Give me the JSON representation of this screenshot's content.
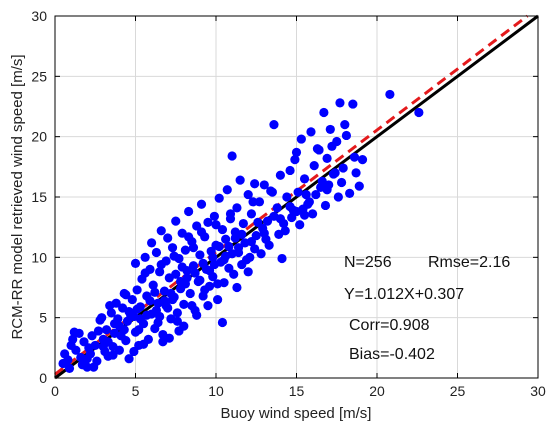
{
  "chart_data": {
    "type": "scatter",
    "xlabel": "Buoy wind speed [m/s]",
    "ylabel": "RCM-RR model retrieved wind speed [m/s]",
    "xlim": [
      0,
      30
    ],
    "ylim": [
      0,
      30
    ],
    "xticks": [
      "0",
      "5",
      "10",
      "15",
      "20",
      "25",
      "30"
    ],
    "yticks": [
      "0",
      "5",
      "10",
      "15",
      "20",
      "25",
      "30"
    ],
    "grid": true,
    "point_color": "#0000ff",
    "lines": [
      {
        "style": "solid",
        "color": "#000000",
        "slope": 1,
        "intercept": 0
      },
      {
        "style": "dashed",
        "color": "#e41a1c",
        "slope": 1.012,
        "intercept": 0.307
      }
    ],
    "annotations": [
      "N=256",
      "Rmse=2.16",
      "Y=1.012X+0.307",
      "Corr=0.908",
      "Bias=-0.402"
    ],
    "points": [
      [
        0.5,
        1.2
      ],
      [
        0.6,
        2.0
      ],
      [
        0.8,
        1.5
      ],
      [
        1.0,
        2.7
      ],
      [
        1.1,
        3.2
      ],
      [
        1.3,
        2.3
      ],
      [
        1.5,
        3.7
      ],
      [
        1.6,
        1.7
      ],
      [
        1.8,
        3.0
      ],
      [
        2.0,
        0.9
      ],
      [
        2.2,
        2.0
      ],
      [
        2.3,
        3.5
      ],
      [
        2.5,
        2.7
      ],
      [
        2.6,
        1.4
      ],
      [
        2.8,
        4.8
      ],
      [
        3.0,
        3.2
      ],
      [
        3.1,
        2.2
      ],
      [
        3.2,
        4.0
      ],
      [
        3.3,
        1.8
      ],
      [
        3.5,
        5.4
      ],
      [
        3.6,
        2.6
      ],
      [
        3.7,
        3.7
      ],
      [
        3.8,
        6.2
      ],
      [
        4.0,
        4.3
      ],
      [
        4.0,
        2.3
      ],
      [
        4.2,
        5.8
      ],
      [
        4.3,
        7.0
      ],
      [
        4.4,
        3.1
      ],
      [
        4.5,
        4.7
      ],
      [
        4.6,
        1.6
      ],
      [
        4.8,
        6.5
      ],
      [
        4.9,
        5.1
      ],
      [
        5.0,
        9.5
      ],
      [
        5.0,
        3.8
      ],
      [
        5.1,
        7.3
      ],
      [
        5.2,
        2.7
      ],
      [
        5.3,
        5.9
      ],
      [
        5.4,
        8.2
      ],
      [
        5.5,
        4.5
      ],
      [
        5.6,
        10.0
      ],
      [
        5.7,
        6.8
      ],
      [
        5.8,
        3.2
      ],
      [
        5.9,
        9.0
      ],
      [
        6.0,
        11.2
      ],
      [
        6.0,
        5.3
      ],
      [
        6.1,
        7.7
      ],
      [
        6.2,
        4.1
      ],
      [
        6.3,
        10.4
      ],
      [
        6.4,
        6.2
      ],
      [
        6.5,
        8.8
      ],
      [
        6.6,
        12.2
      ],
      [
        6.7,
        3.6
      ],
      [
        6.8,
        7.2
      ],
      [
        6.9,
        9.7
      ],
      [
        7.0,
        5.8
      ],
      [
        7.0,
        11.6
      ],
      [
        7.1,
        8.3
      ],
      [
        7.2,
        4.9
      ],
      [
        7.3,
        10.8
      ],
      [
        7.4,
        6.7
      ],
      [
        7.5,
        13.0
      ],
      [
        7.5,
        8.6
      ],
      [
        7.6,
        5.4
      ],
      [
        7.7,
        9.9
      ],
      [
        7.8,
        7.4
      ],
      [
        7.9,
        12.0
      ],
      [
        8.0,
        6.1
      ],
      [
        8.1,
        10.6
      ],
      [
        8.2,
        8.9
      ],
      [
        8.3,
        13.8
      ],
      [
        8.4,
        7.0
      ],
      [
        8.5,
        11.3
      ],
      [
        8.6,
        9.3
      ],
      [
        8.7,
        5.6
      ],
      [
        8.8,
        12.6
      ],
      [
        8.9,
        8.0
      ],
      [
        9.0,
        10.2
      ],
      [
        9.1,
        14.4
      ],
      [
        9.2,
        6.8
      ],
      [
        9.3,
        11.7
      ],
      [
        9.4,
        9.0
      ],
      [
        9.5,
        12.9
      ],
      [
        9.6,
        7.6
      ],
      [
        9.7,
        10.5
      ],
      [
        9.8,
        8.4
      ],
      [
        9.9,
        13.4
      ],
      [
        10.0,
        11.0
      ],
      [
        10.1,
        6.5
      ],
      [
        10.2,
        14.9
      ],
      [
        10.3,
        9.6
      ],
      [
        10.4,
        12.3
      ],
      [
        10.5,
        7.9
      ],
      [
        10.6,
        11.5
      ],
      [
        10.7,
        15.6
      ],
      [
        10.8,
        9.1
      ],
      [
        10.9,
        13.2
      ],
      [
        11.0,
        18.4
      ],
      [
        11.0,
        10.3
      ],
      [
        11.1,
        8.6
      ],
      [
        11.2,
        12.1
      ],
      [
        11.3,
        14.1
      ],
      [
        11.4,
        10.8
      ],
      [
        11.5,
        16.4
      ],
      [
        11.6,
        9.4
      ],
      [
        11.7,
        12.8
      ],
      [
        11.8,
        11.2
      ],
      [
        12.0,
        15.2
      ],
      [
        12.1,
        10.0
      ],
      [
        12.2,
        13.6
      ],
      [
        12.4,
        16.1
      ],
      [
        12.5,
        11.8
      ],
      [
        12.7,
        14.6
      ],
      [
        12.9,
        12.4
      ],
      [
        13.0,
        16.0
      ],
      [
        13.2,
        13.0
      ],
      [
        13.4,
        15.5
      ],
      [
        13.6,
        21.0
      ],
      [
        13.8,
        14.1
      ],
      [
        14.0,
        16.8
      ],
      [
        14.2,
        12.8
      ],
      [
        14.4,
        15.0
      ],
      [
        14.6,
        17.2
      ],
      [
        14.8,
        13.9
      ],
      [
        15.0,
        18.7
      ],
      [
        15.1,
        15.4
      ],
      [
        15.3,
        19.8
      ],
      [
        15.5,
        16.5
      ],
      [
        15.7,
        14.4
      ],
      [
        15.9,
        20.4
      ],
      [
        16.1,
        17.6
      ],
      [
        16.3,
        19.0
      ],
      [
        16.5,
        15.8
      ],
      [
        16.7,
        22.0
      ],
      [
        16.9,
        18.2
      ],
      [
        17.1,
        20.6
      ],
      [
        17.3,
        16.9
      ],
      [
        17.5,
        19.6
      ],
      [
        17.7,
        22.8
      ],
      [
        17.9,
        17.4
      ],
      [
        18.1,
        20.1
      ],
      [
        18.3,
        15.3
      ],
      [
        18.5,
        22.7
      ],
      [
        18.7,
        17.0
      ],
      [
        18.9,
        15.9
      ],
      [
        19.1,
        18.1
      ],
      [
        20.8,
        23.5
      ],
      [
        22.6,
        22.0
      ],
      [
        3.4,
        6.0
      ],
      [
        4.7,
        5.2
      ],
      [
        5.9,
        6.4
      ],
      [
        6.9,
        6.0
      ],
      [
        7.9,
        9.2
      ],
      [
        8.6,
        10.8
      ],
      [
        9.8,
        10.0
      ],
      [
        10.6,
        10.1
      ],
      [
        1.2,
        3.8
      ],
      [
        2.1,
        2.5
      ],
      [
        2.9,
        5.0
      ],
      [
        3.9,
        4.9
      ],
      [
        4.4,
        6.9
      ],
      [
        5.2,
        4.0
      ],
      [
        6.4,
        4.6
      ],
      [
        7.1,
        3.3
      ],
      [
        8.0,
        4.3
      ],
      [
        8.8,
        5.2
      ],
      [
        9.5,
        6.0
      ],
      [
        10.4,
        4.6
      ],
      [
        11.3,
        7.5
      ],
      [
        12.0,
        8.8
      ],
      [
        12.8,
        10.3
      ],
      [
        13.3,
        11.0
      ],
      [
        14.1,
        9.9
      ],
      [
        15.2,
        12.7
      ],
      [
        16.0,
        13.6
      ],
      [
        16.8,
        14.3
      ],
      [
        17.6,
        15.0
      ],
      [
        1.7,
        1.1
      ],
      [
        2.4,
        0.9
      ],
      [
        3.6,
        1.9
      ],
      [
        4.9,
        2.2
      ],
      [
        5.5,
        2.8
      ],
      [
        6.7,
        3.0
      ],
      [
        7.7,
        3.9
      ],
      [
        6.2,
        7.1
      ],
      [
        5.1,
        5.7
      ],
      [
        4.1,
        3.5
      ],
      [
        3.0,
        2.6
      ],
      [
        2.0,
        1.6
      ],
      [
        0.9,
        0.8
      ],
      [
        7.3,
        6.5
      ],
      [
        8.1,
        7.8
      ],
      [
        9.0,
        8.1
      ],
      [
        9.9,
        9.4
      ],
      [
        10.8,
        10.9
      ],
      [
        11.6,
        11.9
      ],
      [
        12.6,
        12.9
      ],
      [
        13.6,
        13.4
      ],
      [
        14.6,
        14.2
      ],
      [
        15.6,
        15.2
      ],
      [
        16.6,
        16.3
      ],
      [
        17.4,
        17.0
      ],
      [
        18.6,
        18.3
      ],
      [
        6.5,
        5.1
      ],
      [
        7.6,
        4.7
      ],
      [
        8.5,
        6.0
      ],
      [
        9.3,
        7.3
      ],
      [
        10.1,
        7.8
      ],
      [
        11.9,
        9.8
      ],
      [
        13.1,
        11.5
      ],
      [
        14.3,
        12.2
      ],
      [
        15.4,
        14.0
      ],
      [
        16.2,
        15.2
      ],
      [
        17.0,
        16.0
      ],
      [
        5.6,
        8.7
      ],
      [
        6.6,
        9.4
      ],
      [
        7.4,
        10.1
      ],
      [
        8.3,
        11.7
      ],
      [
        9.1,
        12.1
      ],
      [
        10.0,
        12.7
      ],
      [
        10.9,
        13.6
      ],
      [
        12.3,
        14.6
      ],
      [
        13.5,
        15.4
      ],
      [
        14.9,
        18.1
      ],
      [
        16.4,
        18.9
      ],
      [
        17.2,
        19.2
      ],
      [
        18.0,
        21.0
      ],
      [
        3.3,
        3.0
      ],
      [
        4.3,
        4.0
      ],
      [
        5.3,
        4.9
      ],
      [
        6.3,
        5.6
      ],
      [
        7.2,
        7.0
      ],
      [
        8.2,
        8.3
      ],
      [
        9.2,
        9.5
      ],
      [
        10.2,
        10.9
      ],
      [
        11.2,
        11.6
      ],
      [
        12.2,
        11.3
      ],
      [
        13.0,
        12.0
      ],
      [
        14.0,
        13.2
      ],
      [
        15.0,
        13.8
      ],
      [
        15.8,
        14.6
      ],
      [
        16.9,
        15.6
      ],
      [
        17.8,
        16.2
      ],
      [
        2.7,
        3.9
      ],
      [
        3.7,
        4.5
      ],
      [
        4.6,
        5.5
      ],
      [
        5.7,
        5.2
      ],
      [
        6.8,
        6.4
      ],
      [
        7.8,
        8.0
      ],
      [
        8.7,
        8.7
      ],
      [
        9.6,
        8.9
      ],
      [
        10.5,
        9.8
      ],
      [
        11.4,
        10.4
      ],
      [
        12.4,
        10.7
      ],
      [
        13.9,
        11.9
      ],
      [
        14.7,
        13.3
      ],
      [
        15.5,
        13.5
      ]
    ]
  }
}
